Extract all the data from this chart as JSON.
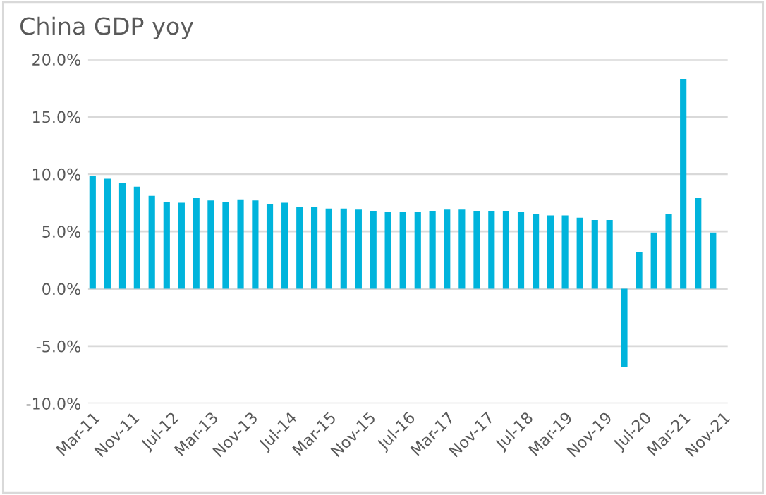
{
  "chart_data": {
    "type": "bar",
    "title": "China GDP yoy",
    "color": "#00b4dc",
    "x": [
      "2011-03",
      "2011-06",
      "2011-09",
      "2011-12",
      "2012-03",
      "2012-06",
      "2012-09",
      "2012-12",
      "2013-03",
      "2013-06",
      "2013-09",
      "2013-12",
      "2014-03",
      "2014-06",
      "2014-09",
      "2014-12",
      "2015-03",
      "2015-06",
      "2015-09",
      "2015-12",
      "2016-03",
      "2016-06",
      "2016-09",
      "2016-12",
      "2017-03",
      "2017-06",
      "2017-09",
      "2017-12",
      "2018-03",
      "2018-06",
      "2018-09",
      "2018-12",
      "2019-03",
      "2019-06",
      "2019-09",
      "2019-12",
      "2020-03",
      "2020-06",
      "2020-09",
      "2020-12",
      "2021-03",
      "2021-06",
      "2021-09"
    ],
    "values": [
      9.8,
      9.6,
      9.2,
      8.9,
      8.1,
      7.6,
      7.5,
      7.9,
      7.7,
      7.6,
      7.8,
      7.7,
      7.4,
      7.5,
      7.1,
      7.1,
      7.0,
      7.0,
      6.9,
      6.8,
      6.7,
      6.7,
      6.7,
      6.8,
      6.9,
      6.9,
      6.8,
      6.8,
      6.8,
      6.7,
      6.5,
      6.4,
      6.4,
      6.2,
      6.0,
      6.0,
      -6.8,
      3.2,
      4.9,
      6.5,
      18.3,
      7.9,
      4.9
    ],
    "xlim": [
      "2011-02",
      "2021-12"
    ],
    "xticks": [
      {
        "value": "2011-03",
        "label": "Mar-11"
      },
      {
        "value": "2011-11",
        "label": "Nov-11"
      },
      {
        "value": "2012-07",
        "label": "Jul-12"
      },
      {
        "value": "2013-03",
        "label": "Mar-13"
      },
      {
        "value": "2013-11",
        "label": "Nov-13"
      },
      {
        "value": "2014-07",
        "label": "Jul-14"
      },
      {
        "value": "2015-03",
        "label": "Mar-15"
      },
      {
        "value": "2015-11",
        "label": "Nov-15"
      },
      {
        "value": "2016-07",
        "label": "Jul-16"
      },
      {
        "value": "2017-03",
        "label": "Mar-17"
      },
      {
        "value": "2017-11",
        "label": "Nov-17"
      },
      {
        "value": "2018-07",
        "label": "Jul-18"
      },
      {
        "value": "2019-03",
        "label": "Mar-19"
      },
      {
        "value": "2019-11",
        "label": "Nov-19"
      },
      {
        "value": "2020-07",
        "label": "Jul-20"
      },
      {
        "value": "2021-03",
        "label": "Mar-21"
      },
      {
        "value": "2021-11",
        "label": "Nov-21"
      }
    ],
    "ylim": [
      -10,
      20
    ],
    "yticks": [
      {
        "value": -10,
        "label": "-10.0%"
      },
      {
        "value": -5,
        "label": "-5.0%"
      },
      {
        "value": 0,
        "label": "0.0%"
      },
      {
        "value": 5,
        "label": "5.0%"
      },
      {
        "value": 10,
        "label": "10.0%"
      },
      {
        "value": 15,
        "label": "15.0%"
      },
      {
        "value": 20,
        "label": "20.0%"
      }
    ],
    "grid": "y",
    "legend": false
  }
}
